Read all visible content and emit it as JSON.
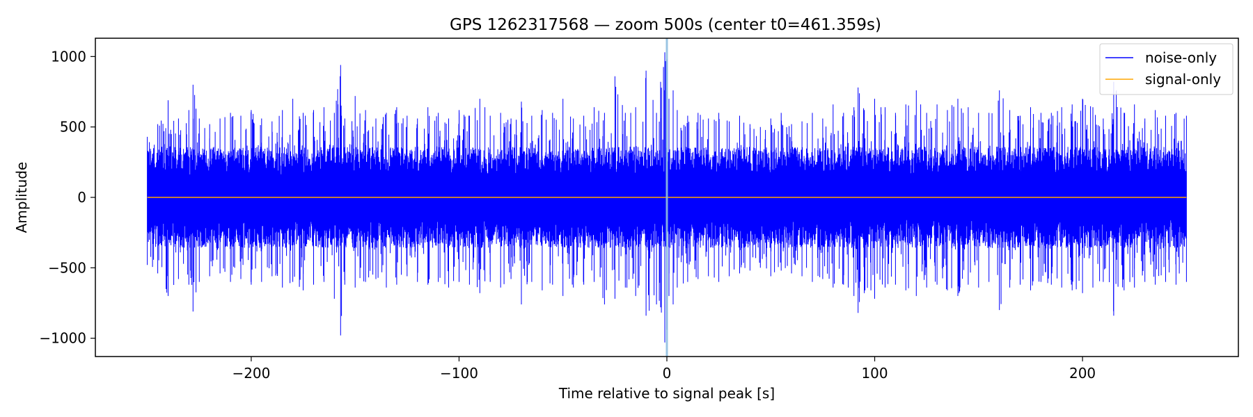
{
  "chart_data": {
    "type": "line",
    "title": "GPS 1262317568 — zoom 500s (center t0=461.359s)",
    "xlabel": "Time relative to signal peak [s]",
    "ylabel": "Amplitude",
    "xlim": [
      -275,
      275
    ],
    "ylim": [
      -1130,
      1130
    ],
    "x_range_data": [
      -250,
      250
    ],
    "xticks": [
      -200,
      -100,
      0,
      100,
      200
    ],
    "xtick_labels": [
      "−200",
      "−100",
      "0",
      "100",
      "200"
    ],
    "yticks": [
      1000,
      500,
      0,
      -500,
      -1000
    ],
    "ytick_labels": [
      "1000",
      "500",
      "0",
      "−500",
      "−1000"
    ],
    "marker_line_x": 0,
    "legend_position": "top-right",
    "grid": false,
    "series": [
      {
        "name": "noise-only",
        "color": "#0000ff",
        "envelope_x": [
          -250,
          -245,
          -240,
          -235,
          -230,
          -228,
          -225,
          -220,
          -215,
          -210,
          -205,
          -200,
          -195,
          -190,
          -185,
          -180,
          -175,
          -170,
          -165,
          -160,
          -157,
          -155,
          -150,
          -145,
          -140,
          -135,
          -130,
          -125,
          -120,
          -115,
          -110,
          -105,
          -100,
          -95,
          -90,
          -85,
          -80,
          -75,
          -70,
          -65,
          -60,
          -55,
          -50,
          -45,
          -40,
          -35,
          -30,
          -25,
          -20,
          -15,
          -10,
          -5,
          -3,
          -1,
          0,
          1,
          3,
          5,
          10,
          15,
          20,
          25,
          30,
          35,
          40,
          45,
          50,
          55,
          60,
          65,
          70,
          75,
          80,
          85,
          90,
          92,
          95,
          100,
          105,
          110,
          115,
          120,
          125,
          130,
          135,
          140,
          145,
          150,
          155,
          160,
          165,
          170,
          175,
          180,
          185,
          190,
          195,
          200,
          205,
          210,
          215,
          220,
          225,
          230,
          235,
          240,
          245,
          250
        ],
        "envelope_max": [
          430,
          520,
          690,
          560,
          620,
          800,
          560,
          520,
          560,
          600,
          580,
          620,
          560,
          540,
          620,
          700,
          600,
          620,
          640,
          600,
          940,
          560,
          720,
          620,
          560,
          600,
          640,
          580,
          560,
          640,
          600,
          560,
          620,
          580,
          700,
          580,
          600,
          560,
          680,
          580,
          620,
          600,
          700,
          560,
          580,
          640,
          600,
          860,
          600,
          640,
          900,
          600,
          820,
          1030,
          980,
          700,
          760,
          620,
          580,
          600,
          560,
          600,
          540,
          580,
          520,
          500,
          560,
          600,
          520,
          540,
          600,
          560,
          660,
          600,
          640,
          780,
          620,
          700,
          640,
          600,
          660,
          760,
          600,
          660,
          620,
          700,
          640,
          600,
          600,
          760,
          620,
          580,
          640,
          600,
          600,
          640,
          660,
          700,
          640,
          560,
          820,
          600,
          660,
          560,
          620,
          580,
          600,
          580
        ],
        "envelope_min": [
          -480,
          -540,
          -700,
          -580,
          -620,
          -810,
          -600,
          -560,
          -540,
          -600,
          -580,
          -620,
          -600,
          -560,
          -640,
          -600,
          -660,
          -620,
          -600,
          -720,
          -980,
          -620,
          -640,
          -600,
          -580,
          -640,
          -620,
          -560,
          -600,
          -620,
          -600,
          -640,
          -600,
          -620,
          -680,
          -600,
          -640,
          -580,
          -760,
          -600,
          -660,
          -620,
          -700,
          -640,
          -620,
          -600,
          -760,
          -720,
          -640,
          -700,
          -840,
          -760,
          -780,
          -1030,
          -940,
          -700,
          -760,
          -640,
          -600,
          -580,
          -560,
          -600,
          -560,
          -540,
          -520,
          -500,
          -560,
          -520,
          -540,
          -560,
          -600,
          -580,
          -640,
          -620,
          -700,
          -820,
          -680,
          -720,
          -640,
          -620,
          -660,
          -700,
          -640,
          -620,
          -660,
          -700,
          -620,
          -640,
          -600,
          -800,
          -640,
          -620,
          -660,
          -600,
          -620,
          -640,
          -660,
          -680,
          -640,
          -600,
          -840,
          -660,
          -640,
          -600,
          -620,
          -600,
          -620,
          -600
        ]
      },
      {
        "name": "signal-only",
        "color": "#ffa500",
        "x": [
          -250,
          250
        ],
        "values": [
          0,
          0
        ]
      }
    ]
  }
}
